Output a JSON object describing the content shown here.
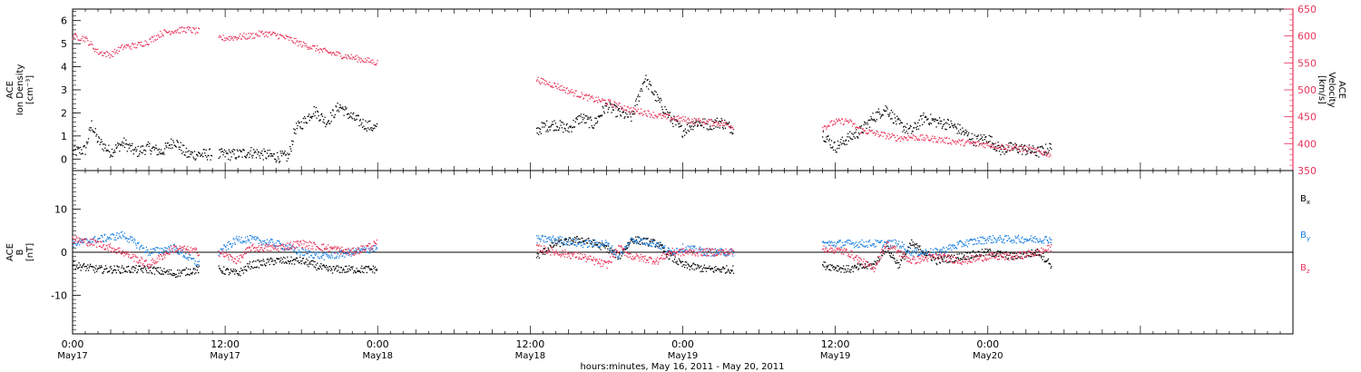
{
  "colors": {
    "black": "#000000",
    "red": "#e8345a",
    "blue": "#1a7fe0",
    "axis": "#000000",
    "right_axis": "#e8345a"
  },
  "xaxis": {
    "title": "hours:minutes, May 16, 2011 - May 20, 2011",
    "tick_hours": [
      0,
      12,
      24,
      36,
      48,
      60,
      72
    ],
    "tick_time_labels": [
      "0:00",
      "12:00",
      "0:00",
      "12:00",
      "0:00",
      "12:00",
      "0:00"
    ],
    "tick_date_labels": [
      "May17",
      "May17",
      "May18",
      "May18",
      "May19",
      "May19",
      "May20"
    ],
    "range_hours": [
      0,
      96
    ]
  },
  "chart_data": [
    {
      "type": "scatter",
      "title": "",
      "ylabel": [
        "ACE",
        "Ion Density",
        "[cm⁻³]"
      ],
      "ylim": [
        -0.5,
        6.5
      ],
      "yticks": [
        0,
        1,
        2,
        3,
        4,
        5,
        6
      ],
      "y2label": [
        "ACE",
        "Velocity",
        "[km/s]"
      ],
      "y2lim": [
        350,
        650
      ],
      "y2ticks": [
        350,
        400,
        450,
        500,
        550,
        600,
        650
      ],
      "series": [
        {
          "key": "density",
          "color": "#000000",
          "axis": "left",
          "segments": [
            [
              0,
              0.3
            ],
            [
              1,
              0.4
            ],
            [
              1.5,
              1.5
            ],
            [
              2,
              0.8
            ],
            [
              3,
              0.3
            ],
            [
              4,
              0.7
            ],
            [
              5,
              0.3
            ],
            [
              6,
              0.5
            ],
            [
              7,
              0.3
            ],
            [
              8,
              0.8
            ],
            [
              9,
              0.2
            ],
            [
              10,
              0.2
            ],
            [
              11,
              0.2
            ],
            null,
            [
              11.5,
              0.2
            ],
            [
              13,
              0.2
            ],
            [
              14,
              0.3
            ],
            [
              15,
              0.2
            ],
            [
              16,
              0.1
            ],
            [
              17,
              0.1
            ],
            [
              17.5,
              1.3
            ],
            [
              18,
              1.5
            ],
            [
              19,
              2.1
            ],
            [
              20,
              1.6
            ],
            [
              21,
              2.3
            ],
            [
              22,
              1.8
            ],
            [
              23,
              1.5
            ],
            [
              24,
              1.3
            ],
            null,
            [
              36.5,
              1.2
            ],
            [
              37,
              1.4
            ],
            [
              38,
              1.5
            ],
            [
              39,
              1.3
            ],
            [
              40,
              1.8
            ],
            [
              41,
              1.5
            ],
            [
              42,
              2.3
            ],
            [
              43,
              2.0
            ],
            [
              44,
              1.8
            ],
            [
              45,
              3.5
            ],
            [
              46,
              2.6
            ],
            [
              47,
              1.8
            ],
            [
              48,
              1.2
            ],
            [
              49,
              1.6
            ],
            [
              50,
              1.5
            ],
            [
              51,
              1.6
            ],
            [
              52,
              1.3
            ],
            null,
            [
              59,
              1.1
            ],
            [
              60,
              0.5
            ],
            [
              61,
              0.9
            ],
            [
              62,
              1.2
            ],
            [
              63,
              1.8
            ],
            [
              64,
              2.2
            ],
            [
              65,
              1.5
            ],
            [
              66,
              1.2
            ],
            [
              67,
              1.8
            ],
            [
              68,
              1.6
            ],
            [
              69,
              1.5
            ],
            [
              70,
              1.2
            ],
            [
              71,
              0.8
            ],
            [
              72,
              0.9
            ],
            [
              73,
              0.4
            ],
            [
              74,
              0.5
            ],
            [
              75,
              0.4
            ],
            [
              76,
              0.3
            ],
            [
              77,
              0.5
            ]
          ]
        },
        {
          "key": "velocity",
          "color": "#e8345a",
          "axis": "right",
          "segments": [
            [
              0,
              600
            ],
            [
              1,
              595
            ],
            [
              2,
              570
            ],
            [
              3,
              565
            ],
            [
              4,
              580
            ],
            [
              5,
              582
            ],
            [
              6,
              590
            ],
            [
              7,
              605
            ],
            [
              8,
              610
            ],
            [
              9,
              612
            ],
            [
              10,
              608
            ],
            null,
            [
              11.5,
              595
            ],
            [
              13,
              598
            ],
            [
              14,
              600
            ],
            [
              15,
              605
            ],
            [
              16,
              602
            ],
            [
              17,
              595
            ],
            [
              18,
              585
            ],
            [
              19,
              578
            ],
            [
              20,
              570
            ],
            [
              21,
              565
            ],
            [
              22,
              560
            ],
            [
              23,
              555
            ],
            [
              24,
              550
            ],
            null,
            [
              36.5,
              520
            ],
            [
              37,
              515
            ],
            [
              38,
              508
            ],
            [
              39,
              498
            ],
            [
              40,
              490
            ],
            [
              41,
              482
            ],
            [
              42,
              478
            ],
            [
              43,
              470
            ],
            [
              44,
              462
            ],
            [
              45,
              458
            ],
            [
              46,
              452
            ],
            [
              47,
              448
            ],
            [
              48,
              445
            ],
            [
              49,
              442
            ],
            [
              50,
              440
            ],
            [
              51,
              438
            ],
            [
              52,
              432
            ],
            null,
            [
              59,
              430
            ],
            [
              60,
              440
            ],
            [
              61,
              442
            ],
            [
              62,
              425
            ],
            [
              63,
              420
            ],
            [
              64,
              415
            ],
            [
              65,
              410
            ],
            [
              66,
              412
            ],
            [
              67,
              410
            ],
            [
              68,
              408
            ],
            [
              69,
              405
            ],
            [
              70,
              402
            ],
            [
              71,
              400
            ],
            [
              72,
              398
            ],
            [
              73,
              395
            ],
            [
              74,
              392
            ],
            [
              75,
              390
            ],
            [
              76,
              385
            ],
            [
              77,
              380
            ]
          ]
        }
      ]
    },
    {
      "type": "scatter",
      "title": "",
      "ylabel": [
        "ACE",
        "B",
        "[nT]"
      ],
      "ylim": [
        -19,
        19
      ],
      "yticks": [
        -10,
        0,
        10
      ],
      "zero_line": true,
      "series": [
        {
          "name": "Bx",
          "color": "#000000",
          "segments": [
            [
              0,
              -3
            ],
            [
              2,
              -4
            ],
            [
              4,
              -4
            ],
            [
              6,
              -4
            ],
            [
              8,
              -5
            ],
            [
              10,
              -4
            ],
            null,
            [
              11.5,
              -4
            ],
            [
              13,
              -5
            ],
            [
              14,
              -3
            ],
            [
              16,
              -2
            ],
            [
              18,
              -2
            ],
            [
              20,
              -4
            ],
            [
              22,
              -4
            ],
            [
              24,
              -4
            ],
            null,
            [
              36.5,
              -1
            ],
            [
              38,
              2
            ],
            [
              40,
              3
            ],
            [
              42,
              1
            ],
            [
              43,
              -1
            ],
            [
              44,
              3
            ],
            [
              46,
              2
            ],
            [
              47,
              -1
            ],
            [
              48,
              -3
            ],
            [
              50,
              -4
            ],
            [
              52,
              -4
            ],
            null,
            [
              59,
              -3
            ],
            [
              61,
              -4
            ],
            [
              63,
              -3
            ],
            [
              64,
              1
            ],
            [
              65,
              -3
            ],
            [
              66,
              2
            ],
            [
              68,
              -2
            ],
            [
              70,
              -1
            ],
            [
              72,
              0
            ],
            [
              74,
              -1
            ],
            [
              76,
              0
            ],
            [
              77,
              -3
            ]
          ]
        },
        {
          "name": "By",
          "color": "#1a7fe0",
          "segments": [
            [
              0,
              2
            ],
            [
              2,
              3
            ],
            [
              4,
              4
            ],
            [
              6,
              0
            ],
            [
              8,
              1
            ],
            [
              10,
              -3
            ],
            null,
            [
              11.5,
              0
            ],
            [
              13,
              3
            ],
            [
              14,
              3
            ],
            [
              16,
              2
            ],
            [
              18,
              0
            ],
            [
              20,
              -1
            ],
            [
              22,
              0
            ],
            [
              24,
              1
            ],
            null,
            [
              36.5,
              3
            ],
            [
              38,
              3
            ],
            [
              40,
              2
            ],
            [
              42,
              2
            ],
            [
              43,
              -1
            ],
            [
              44,
              3
            ],
            [
              46,
              2
            ],
            [
              47,
              0
            ],
            [
              48,
              1
            ],
            [
              50,
              0
            ],
            [
              52,
              0
            ],
            null,
            [
              59,
              2
            ],
            [
              61,
              2
            ],
            [
              63,
              2
            ],
            [
              64,
              2
            ],
            [
              65,
              2
            ],
            [
              66,
              0
            ],
            [
              68,
              0
            ],
            [
              70,
              2
            ],
            [
              72,
              3
            ],
            [
              74,
              3
            ],
            [
              76,
              3
            ],
            [
              77,
              3
            ]
          ]
        },
        {
          "name": "Bz",
          "color": "#e8345a",
          "segments": [
            [
              0,
              3
            ],
            [
              2,
              2
            ],
            [
              4,
              0
            ],
            [
              6,
              -3
            ],
            [
              8,
              1
            ],
            [
              10,
              0
            ],
            null,
            [
              11.5,
              0
            ],
            [
              13,
              -2
            ],
            [
              14,
              1
            ],
            [
              16,
              1
            ],
            [
              18,
              2
            ],
            [
              20,
              1
            ],
            [
              22,
              0
            ],
            [
              24,
              2
            ],
            null,
            [
              36.5,
              1
            ],
            [
              38,
              0
            ],
            [
              40,
              -1
            ],
            [
              42,
              -3
            ],
            [
              43,
              1
            ],
            [
              44,
              -1
            ],
            [
              46,
              -2
            ],
            [
              47,
              0
            ],
            [
              48,
              0
            ],
            [
              50,
              0
            ],
            [
              52,
              0
            ],
            null,
            [
              59,
              1
            ],
            [
              61,
              0
            ],
            [
              63,
              -4
            ],
            [
              64,
              2
            ],
            [
              65,
              0
            ],
            [
              66,
              -2
            ],
            [
              68,
              -1
            ],
            [
              70,
              -2
            ],
            [
              72,
              -1
            ],
            [
              74,
              -1
            ],
            [
              76,
              0
            ],
            [
              77,
              1
            ]
          ]
        }
      ]
    }
  ]
}
